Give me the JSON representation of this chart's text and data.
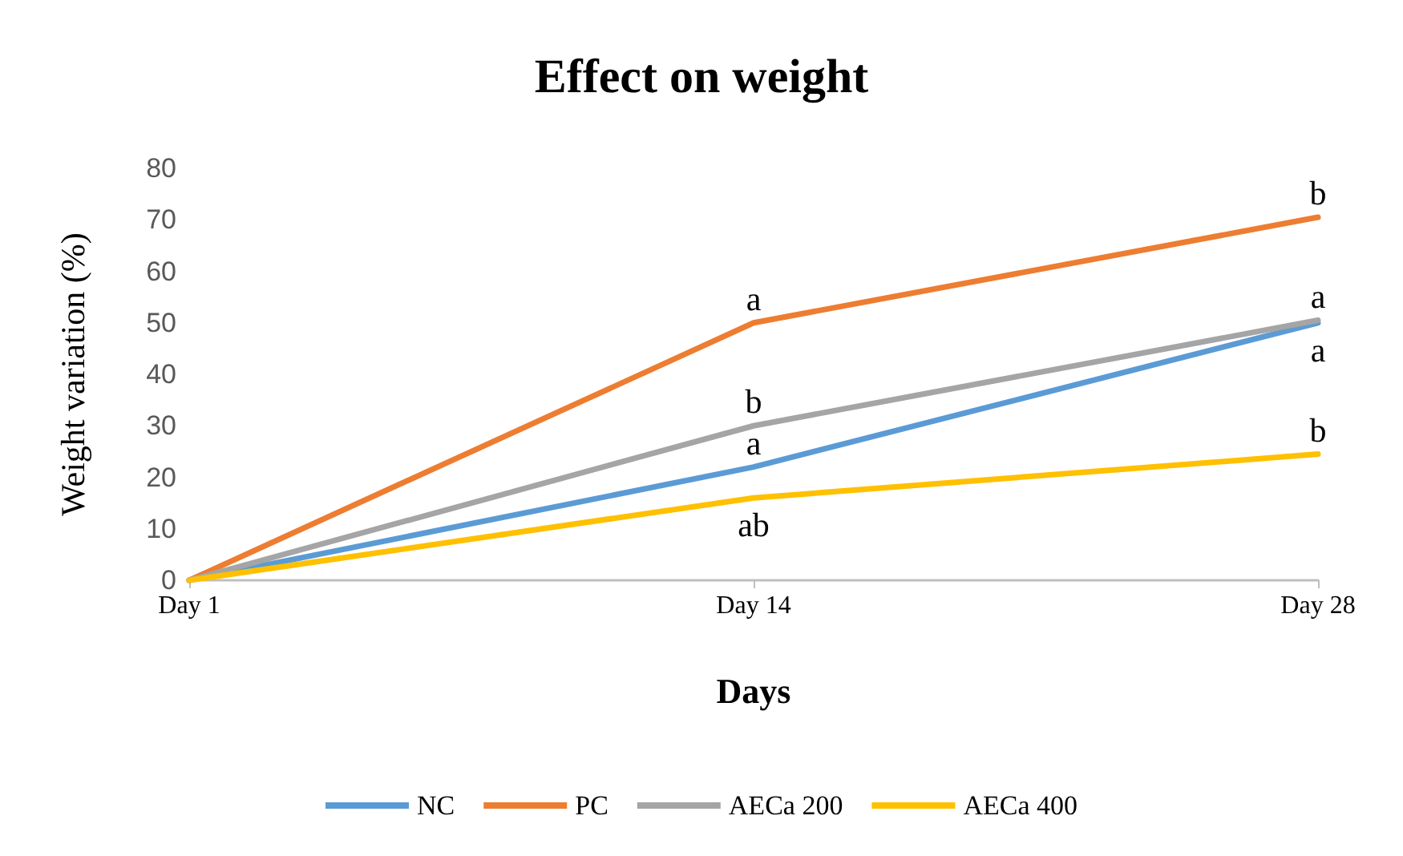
{
  "chart_data": {
    "type": "line",
    "title": "Effect on weight",
    "xlabel": "Days",
    "ylabel": "Weight variation (%)",
    "categories": [
      "Day 1",
      "Day 14",
      "Day 28"
    ],
    "series": [
      {
        "name": "NC",
        "color": "#5b9bd5",
        "values": [
          0,
          22,
          50
        ]
      },
      {
        "name": "PC",
        "color": "#ed7d31",
        "values": [
          0,
          50,
          70.5
        ]
      },
      {
        "name": "AECa 200",
        "color": "#a5a5a5",
        "values": [
          0,
          30,
          50.5
        ]
      },
      {
        "name": "AECa 400",
        "color": "#ffc000",
        "values": [
          0,
          16,
          24.5
        ]
      }
    ],
    "ylim": [
      0,
      80
    ],
    "yticks": [
      0,
      10,
      20,
      30,
      40,
      50,
      60,
      70,
      80
    ],
    "grid": false,
    "legend": "bottom",
    "marker": "none",
    "line_style": "solid",
    "annotations": [
      {
        "text": "a",
        "x": "Day 14",
        "y": 50
      },
      {
        "text": "b",
        "x": "Day 28",
        "y": 70.5
      },
      {
        "text": "b",
        "x": "Day 14",
        "y": 30
      },
      {
        "text": "a",
        "x": "Day 14",
        "y": 22
      },
      {
        "text": "ab",
        "x": "Day 14",
        "y": 16
      },
      {
        "text": "a",
        "x": "Day 28",
        "y": 50.5
      },
      {
        "text": "a",
        "x": "Day 28",
        "y": 50
      },
      {
        "text": "b",
        "x": "Day 28",
        "y": 24.5
      }
    ]
  }
}
